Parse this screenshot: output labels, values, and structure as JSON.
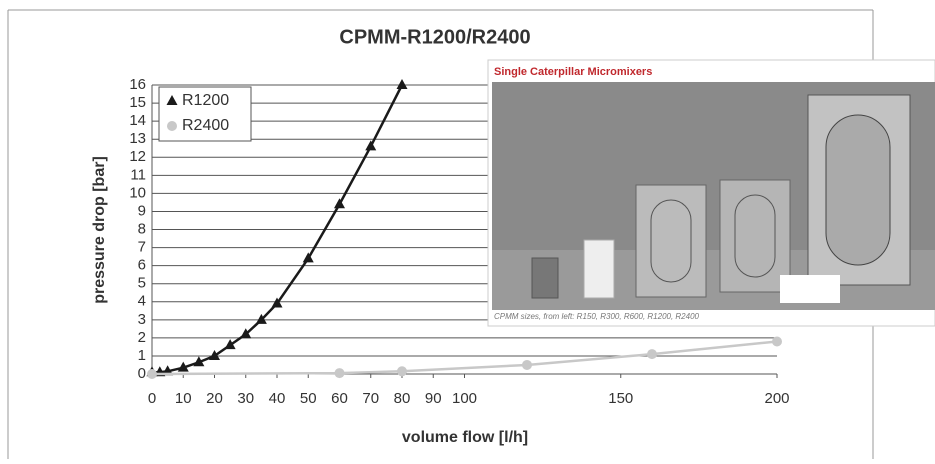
{
  "chart_data": {
    "type": "line",
    "title": "CPMM-R1200/R2400",
    "xlabel": "volume flow [l/h]",
    "ylabel": "pressure drop [bar]",
    "xlim": [
      0,
      200
    ],
    "xticks": [
      0,
      10,
      20,
      30,
      40,
      50,
      60,
      70,
      80,
      90,
      100,
      150,
      200
    ],
    "ylim": [
      0,
      16
    ],
    "yticks": [
      0,
      1,
      2,
      3,
      4,
      5,
      6,
      7,
      8,
      9,
      10,
      11,
      12,
      13,
      14,
      15,
      16
    ],
    "grid": true,
    "legend": "upper left",
    "series": [
      {
        "name": "R1200",
        "color": "#1a1a1a",
        "marker": "triangle",
        "x": [
          0,
          2.5,
          5,
          10,
          15,
          20,
          25,
          30,
          35,
          40,
          50,
          60,
          70,
          80
        ],
        "values": [
          0.1,
          0.1,
          0.15,
          0.35,
          0.65,
          1.0,
          1.6,
          2.2,
          3.0,
          3.9,
          6.4,
          9.4,
          12.6,
          16
        ]
      },
      {
        "name": "R2400",
        "color": "#c8c8c8",
        "marker": "circle",
        "x": [
          0,
          60,
          80,
          120,
          160,
          200
        ],
        "values": [
          0,
          0.05,
          0.15,
          0.5,
          1.1,
          1.8
        ]
      }
    ]
  },
  "inset": {
    "title": "Single Caterpillar Micromixers",
    "caption": "CPMM sizes, from left: R150, R300, R600, R1200, R2400"
  }
}
